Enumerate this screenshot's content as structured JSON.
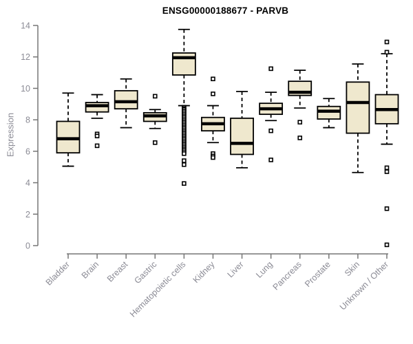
{
  "chart_data": {
    "type": "boxplot",
    "title": "ENSG00000188677 - PARVB",
    "ylabel": "Expression",
    "xlabel": "",
    "ylim": [
      0,
      14
    ],
    "yticks": [
      0,
      2,
      4,
      6,
      8,
      10,
      12,
      14
    ],
    "grid": false,
    "legend": false,
    "categories": [
      "Bladder",
      "Brain",
      "Breast",
      "Gastric",
      "Hematopoietic cells",
      "Kidney",
      "Liver",
      "Lung",
      "Pancreas",
      "Prostate",
      "Skin",
      "Unknown / Other"
    ],
    "series": [
      {
        "category": "Bladder",
        "min": 5.05,
        "q1": 5.9,
        "median": 6.8,
        "q3": 7.9,
        "max": 9.7,
        "outliers": []
      },
      {
        "category": "Brain",
        "min": 8.1,
        "q1": 8.5,
        "median": 8.9,
        "q3": 9.1,
        "max": 9.6,
        "outliers": [
          7.1,
          6.97,
          6.35
        ]
      },
      {
        "category": "Breast",
        "min": 7.5,
        "q1": 8.7,
        "median": 9.15,
        "q3": 9.85,
        "max": 10.6,
        "outliers": []
      },
      {
        "category": "Gastric",
        "min": 7.45,
        "q1": 7.9,
        "median": 8.25,
        "q3": 8.45,
        "max": 8.65,
        "outliers": [
          9.5,
          6.55
        ]
      },
      {
        "category": "Hematopoietic cells",
        "min": 8.9,
        "q1": 10.85,
        "median": 11.95,
        "q3": 12.25,
        "max": 13.75,
        "outliers": [
          8.8,
          8.72,
          8.65,
          8.55,
          8.45,
          8.35,
          8.25,
          8.15,
          8.05,
          7.95,
          7.85,
          7.75,
          7.65,
          7.55,
          7.45,
          7.35,
          7.25,
          7.15,
          7.05,
          6.95,
          6.85,
          6.75,
          6.65,
          6.55,
          6.45,
          6.35,
          6.25,
          6.15,
          6.05,
          5.95,
          5.85,
          5.4,
          5.15,
          3.95
        ]
      },
      {
        "category": "Kidney",
        "min": 6.55,
        "q1": 7.3,
        "median": 7.75,
        "q3": 8.15,
        "max": 8.9,
        "outliers": [
          10.6,
          9.65,
          5.85,
          5.7,
          5.6
        ]
      },
      {
        "category": "Liver",
        "min": 4.95,
        "q1": 5.8,
        "median": 6.5,
        "q3": 8.1,
        "max": 9.8,
        "outliers": []
      },
      {
        "category": "Lung",
        "min": 7.95,
        "q1": 8.35,
        "median": 8.7,
        "q3": 9.05,
        "max": 9.75,
        "outliers": [
          11.25,
          7.3,
          5.45
        ]
      },
      {
        "category": "Pancreas",
        "min": 8.75,
        "q1": 9.55,
        "median": 9.75,
        "q3": 10.45,
        "max": 11.15,
        "outliers": [
          7.85,
          6.85
        ]
      },
      {
        "category": "Prostate",
        "min": 7.5,
        "q1": 8.05,
        "median": 8.55,
        "q3": 8.85,
        "max": 9.35,
        "outliers": []
      },
      {
        "category": "Skin",
        "min": 4.65,
        "q1": 7.15,
        "median": 9.1,
        "q3": 10.4,
        "max": 11.55,
        "outliers": []
      },
      {
        "category": "Unknown / Other",
        "min": 6.45,
        "q1": 7.75,
        "median": 8.65,
        "q3": 9.6,
        "max": 12.2,
        "outliers": [
          12.95,
          12.3,
          4.95,
          4.7,
          2.35,
          0.05
        ]
      }
    ],
    "colors": {
      "box_fill": "#EFE8CE",
      "box_stroke": "#000000",
      "median": "#000000",
      "whisker": "#000000",
      "outlier_stroke": "#000000",
      "outlier_fill": "#ffffff",
      "axis": "#757575",
      "tick_label": "#8b8b95",
      "title": "#000000"
    }
  }
}
